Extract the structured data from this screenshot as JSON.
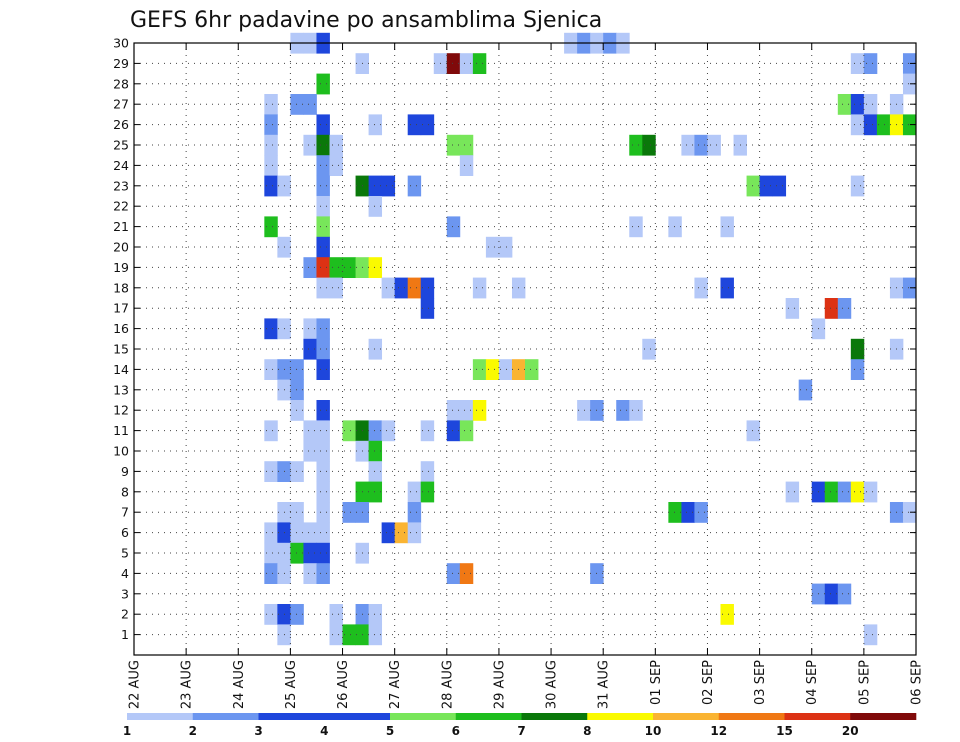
{
  "chart_data": {
    "type": "heatmap",
    "title": "GEFS 6hr padavine po ansamblima Sjenica",
    "x_labels": [
      "22 AUG",
      "23 AUG",
      "24 AUG",
      "25 AUG",
      "26 AUG",
      "27 AUG",
      "28 AUG",
      "29 AUG",
      "30 AUG",
      "31 AUG",
      "01 SEP",
      "02 SEP",
      "03 SEP",
      "04 SEP",
      "05 SEP",
      "06 SEP"
    ],
    "y_ticks": [
      1,
      2,
      3,
      4,
      5,
      6,
      7,
      8,
      9,
      10,
      11,
      12,
      13,
      14,
      15,
      16,
      17,
      18,
      19,
      20,
      21,
      22,
      23,
      24,
      25,
      26,
      27,
      28,
      29,
      30
    ],
    "members_range": [
      0,
      30
    ],
    "steps_per_day": 4,
    "grid": true,
    "legend": {
      "position": "bottom",
      "thresholds": [
        1,
        2,
        3,
        4,
        5,
        6,
        7,
        8,
        10,
        12,
        15,
        20
      ],
      "labels": [
        "1",
        "2",
        "3",
        "4",
        "5",
        "6",
        "7",
        "8",
        "10",
        "12",
        "15",
        "20"
      ],
      "colors": [
        "#b4c8f8",
        "#6c96f0",
        "#1e46dc",
        "#1e46dc",
        "#78e65a",
        "#1ebe1e",
        "#0a780a",
        "#fafa00",
        "#fab432",
        "#f07814",
        "#dc3214",
        "#800a0a"
      ]
    },
    "level_colors": [
      "#b4c8f8",
      "#6c96f0",
      "#1e46dc",
      "#78e65a",
      "#1ebe1e",
      "#0a780a",
      "#fafa00",
      "#fab432",
      "#f07814",
      "#dc3214",
      "#800a0a"
    ],
    "cells": [
      [
        30,
        12,
        1
      ],
      [
        30,
        13,
        1
      ],
      [
        30,
        14,
        3
      ],
      [
        30,
        33,
        1
      ],
      [
        30,
        34,
        2
      ],
      [
        30,
        35,
        1
      ],
      [
        30,
        36,
        2
      ],
      [
        30,
        37,
        1
      ],
      [
        29,
        17,
        1
      ],
      [
        29,
        23,
        1
      ],
      [
        29,
        24,
        11
      ],
      [
        29,
        25,
        1
      ],
      [
        29,
        26,
        5
      ],
      [
        29,
        55,
        1
      ],
      [
        29,
        56,
        2
      ],
      [
        29,
        59,
        2
      ],
      [
        28,
        14,
        5
      ],
      [
        28,
        59,
        1
      ],
      [
        27,
        10,
        1
      ],
      [
        27,
        12,
        2
      ],
      [
        27,
        13,
        2
      ],
      [
        27,
        54,
        4
      ],
      [
        27,
        55,
        3
      ],
      [
        27,
        56,
        1
      ],
      [
        27,
        58,
        1
      ],
      [
        26,
        10,
        2
      ],
      [
        26,
        14,
        3
      ],
      [
        26,
        18,
        1
      ],
      [
        26,
        21,
        3
      ],
      [
        26,
        22,
        3
      ],
      [
        26,
        55,
        1
      ],
      [
        26,
        56,
        3
      ],
      [
        26,
        57,
        5
      ],
      [
        26,
        58,
        7
      ],
      [
        26,
        59,
        5
      ],
      [
        25,
        10,
        1
      ],
      [
        25,
        13,
        1
      ],
      [
        25,
        14,
        6
      ],
      [
        25,
        15,
        1
      ],
      [
        25,
        24,
        4
      ],
      [
        25,
        25,
        4
      ],
      [
        25,
        38,
        5
      ],
      [
        25,
        39,
        6
      ],
      [
        25,
        42,
        1
      ],
      [
        25,
        43,
        2
      ],
      [
        25,
        44,
        1
      ],
      [
        25,
        46,
        1
      ],
      [
        24,
        10,
        1
      ],
      [
        24,
        14,
        2
      ],
      [
        24,
        15,
        1
      ],
      [
        24,
        25,
        1
      ],
      [
        23,
        10,
        3
      ],
      [
        23,
        11,
        1
      ],
      [
        23,
        14,
        2
      ],
      [
        23,
        17,
        6
      ],
      [
        23,
        18,
        3
      ],
      [
        23,
        19,
        3
      ],
      [
        23,
        21,
        2
      ],
      [
        23,
        47,
        4
      ],
      [
        23,
        48,
        3
      ],
      [
        23,
        49,
        3
      ],
      [
        23,
        55,
        1
      ],
      [
        22,
        14,
        1
      ],
      [
        22,
        18,
        1
      ],
      [
        21,
        10,
        5
      ],
      [
        21,
        14,
        4
      ],
      [
        21,
        24,
        2
      ],
      [
        21,
        38,
        1
      ],
      [
        21,
        41,
        1
      ],
      [
        21,
        45,
        1
      ],
      [
        20,
        11,
        1
      ],
      [
        20,
        14,
        3
      ],
      [
        20,
        27,
        1
      ],
      [
        20,
        28,
        1
      ],
      [
        19,
        13,
        2
      ],
      [
        19,
        14,
        10
      ],
      [
        19,
        15,
        5
      ],
      [
        19,
        16,
        5
      ],
      [
        19,
        17,
        4
      ],
      [
        19,
        18,
        7
      ],
      [
        18,
        14,
        1
      ],
      [
        18,
        15,
        1
      ],
      [
        18,
        19,
        1
      ],
      [
        18,
        20,
        3
      ],
      [
        18,
        21,
        9
      ],
      [
        18,
        22,
        3
      ],
      [
        18,
        26,
        1
      ],
      [
        18,
        29,
        1
      ],
      [
        18,
        43,
        1
      ],
      [
        18,
        45,
        3
      ],
      [
        18,
        58,
        1
      ],
      [
        18,
        59,
        2
      ],
      [
        17,
        22,
        3
      ],
      [
        17,
        50,
        1
      ],
      [
        17,
        53,
        10
      ],
      [
        17,
        54,
        2
      ],
      [
        16,
        10,
        3
      ],
      [
        16,
        11,
        1
      ],
      [
        16,
        13,
        1
      ],
      [
        16,
        14,
        2
      ],
      [
        16,
        52,
        1
      ],
      [
        15,
        13,
        3
      ],
      [
        15,
        14,
        2
      ],
      [
        15,
        18,
        1
      ],
      [
        15,
        39,
        1
      ],
      [
        15,
        55,
        6
      ],
      [
        15,
        58,
        1
      ],
      [
        14,
        10,
        1
      ],
      [
        14,
        11,
        2
      ],
      [
        14,
        12,
        2
      ],
      [
        14,
        14,
        3
      ],
      [
        14,
        26,
        4
      ],
      [
        14,
        27,
        7
      ],
      [
        14,
        28,
        1
      ],
      [
        14,
        29,
        8
      ],
      [
        14,
        30,
        4
      ],
      [
        14,
        55,
        2
      ],
      [
        13,
        11,
        1
      ],
      [
        13,
        12,
        2
      ],
      [
        13,
        51,
        2
      ],
      [
        12,
        12,
        1
      ],
      [
        12,
        14,
        3
      ],
      [
        12,
        24,
        1
      ],
      [
        12,
        25,
        1
      ],
      [
        12,
        26,
        7
      ],
      [
        12,
        34,
        1
      ],
      [
        12,
        35,
        2
      ],
      [
        12,
        37,
        2
      ],
      [
        12,
        38,
        1
      ],
      [
        11,
        10,
        1
      ],
      [
        11,
        13,
        1
      ],
      [
        11,
        14,
        1
      ],
      [
        11,
        16,
        4
      ],
      [
        11,
        17,
        6
      ],
      [
        11,
        18,
        2
      ],
      [
        11,
        19,
        1
      ],
      [
        11,
        22,
        1
      ],
      [
        11,
        24,
        3
      ],
      [
        11,
        25,
        4
      ],
      [
        11,
        47,
        1
      ],
      [
        10,
        13,
        1
      ],
      [
        10,
        14,
        1
      ],
      [
        10,
        17,
        1
      ],
      [
        10,
        18,
        5
      ],
      [
        9,
        10,
        1
      ],
      [
        9,
        11,
        2
      ],
      [
        9,
        12,
        1
      ],
      [
        9,
        14,
        1
      ],
      [
        9,
        18,
        1
      ],
      [
        9,
        22,
        1
      ],
      [
        8,
        14,
        1
      ],
      [
        8,
        17,
        5
      ],
      [
        8,
        18,
        5
      ],
      [
        8,
        21,
        1
      ],
      [
        8,
        22,
        5
      ],
      [
        8,
        50,
        1
      ],
      [
        8,
        52,
        3
      ],
      [
        8,
        53,
        5
      ],
      [
        8,
        54,
        2
      ],
      [
        8,
        55,
        7
      ],
      [
        8,
        56,
        1
      ],
      [
        7,
        11,
        1
      ],
      [
        7,
        12,
        1
      ],
      [
        7,
        14,
        1
      ],
      [
        7,
        16,
        2
      ],
      [
        7,
        17,
        2
      ],
      [
        7,
        21,
        2
      ],
      [
        7,
        41,
        5
      ],
      [
        7,
        42,
        3
      ],
      [
        7,
        43,
        2
      ],
      [
        7,
        58,
        2
      ],
      [
        7,
        59,
        1
      ],
      [
        6,
        10,
        1
      ],
      [
        6,
        11,
        3
      ],
      [
        6,
        12,
        1
      ],
      [
        6,
        13,
        1
      ],
      [
        6,
        14,
        1
      ],
      [
        6,
        19,
        3
      ],
      [
        6,
        20,
        8
      ],
      [
        6,
        21,
        1
      ],
      [
        5,
        10,
        1
      ],
      [
        5,
        11,
        1
      ],
      [
        5,
        12,
        5
      ],
      [
        5,
        13,
        3
      ],
      [
        5,
        14,
        3
      ],
      [
        5,
        17,
        1
      ],
      [
        4,
        10,
        2
      ],
      [
        4,
        11,
        1
      ],
      [
        4,
        13,
        1
      ],
      [
        4,
        14,
        2
      ],
      [
        4,
        24,
        2
      ],
      [
        4,
        25,
        9
      ],
      [
        4,
        35,
        2
      ],
      [
        3,
        52,
        2
      ],
      [
        3,
        53,
        3
      ],
      [
        3,
        54,
        2
      ],
      [
        2,
        10,
        1
      ],
      [
        2,
        11,
        3
      ],
      [
        2,
        12,
        2
      ],
      [
        2,
        15,
        1
      ],
      [
        2,
        17,
        2
      ],
      [
        2,
        18,
        1
      ],
      [
        2,
        45,
        7
      ],
      [
        1,
        11,
        1
      ],
      [
        1,
        15,
        1
      ],
      [
        1,
        16,
        5
      ],
      [
        1,
        17,
        5
      ],
      [
        1,
        18,
        1
      ],
      [
        1,
        56,
        1
      ]
    ]
  }
}
